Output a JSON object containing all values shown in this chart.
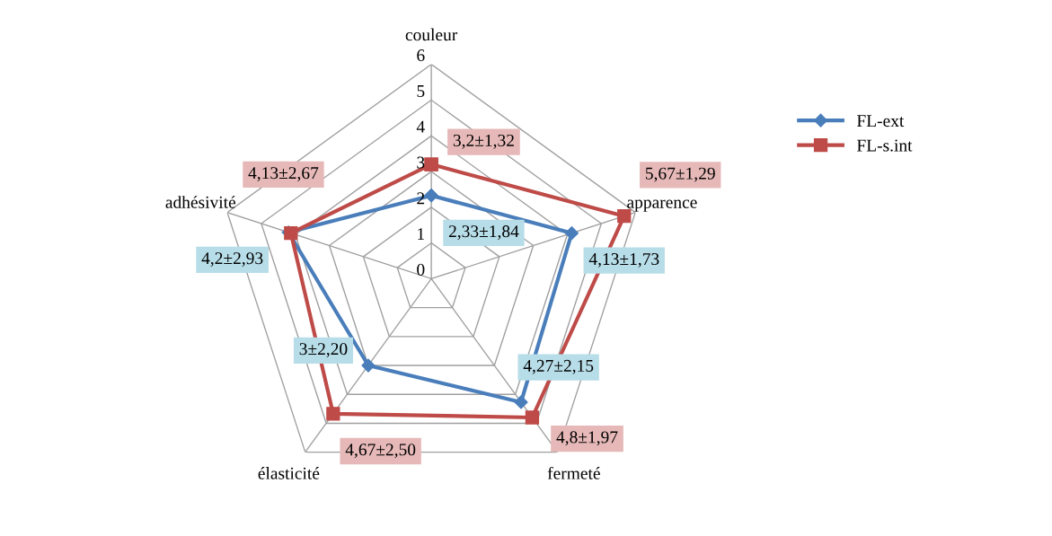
{
  "chart_data": {
    "type": "radar",
    "categories": [
      "couleur",
      "apparence",
      "fermeté",
      "élasticité",
      "adhésivité"
    ],
    "ylim": [
      0,
      6
    ],
    "yticks": [
      0,
      1,
      2,
      3,
      4,
      5,
      6
    ],
    "grid": true,
    "legend": "right",
    "series": [
      {
        "name": "FL-ext",
        "color": "#4a7ebb",
        "marker": "diamond",
        "values": [
          2.33,
          4.13,
          4.27,
          3,
          4.2
        ],
        "value_labels": [
          "2,33±1,84",
          "4,13±1,73",
          "4,27±2,15",
          "3±2,20",
          "4,2±2,93"
        ]
      },
      {
        "name": "FL-s.int",
        "color": "#be4b48",
        "marker": "square",
        "values": [
          3.2,
          5.67,
          4.8,
          4.67,
          4.13
        ],
        "value_labels": [
          "3,2±1,32",
          "5,67±1,29",
          "4,8±1,97",
          "4,67±2,50",
          "4,13±2,67"
        ]
      }
    ]
  }
}
